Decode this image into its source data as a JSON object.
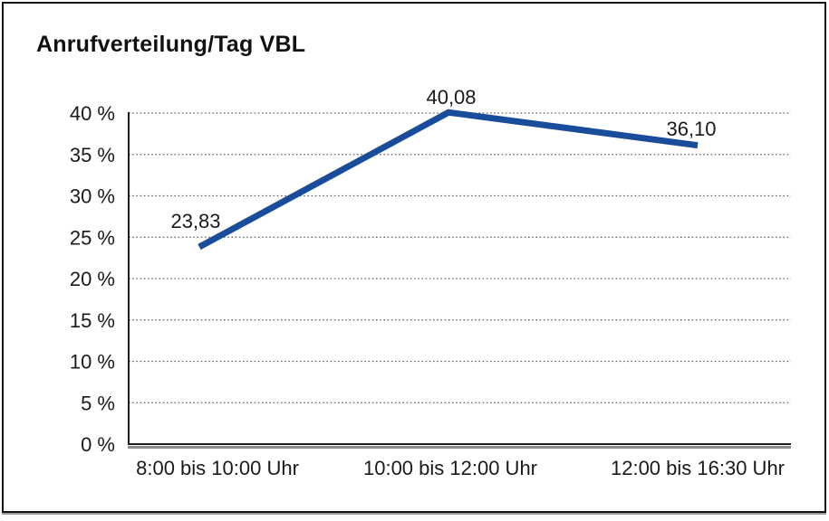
{
  "window": {
    "title": "Anrufverteilung/Tag VBL"
  },
  "chart_data": {
    "type": "line",
    "title": "Anrufverteilung/Tag VBL",
    "categories": [
      "8:00 bis 10:00 Uhr",
      "10:00 bis 12:00 Uhr",
      "12:00 bis 16:30 Uhr"
    ],
    "values": [
      23.83,
      40.08,
      36.1
    ],
    "point_labels": [
      "23,83",
      "40,08",
      "36,10"
    ],
    "xlabel": "",
    "ylabel": "",
    "ylim": [
      0,
      40
    ],
    "ytick_step": 5,
    "ytick_labels": [
      "0 %",
      "5 %",
      "10 %",
      "15 %",
      "20 %",
      "25 %",
      "30 %",
      "35 %",
      "40 %"
    ],
    "grid": "horizontal-dotted",
    "legend_position": "none",
    "colors": {
      "line": "#1a4c9c",
      "axis": "#1d1d1d",
      "axis_shadow": "#8c8c8c",
      "gridline": "#5f5f5f",
      "text": "#1a1a1a",
      "background": "#ffffff",
      "frame_border": "#141414"
    }
  }
}
